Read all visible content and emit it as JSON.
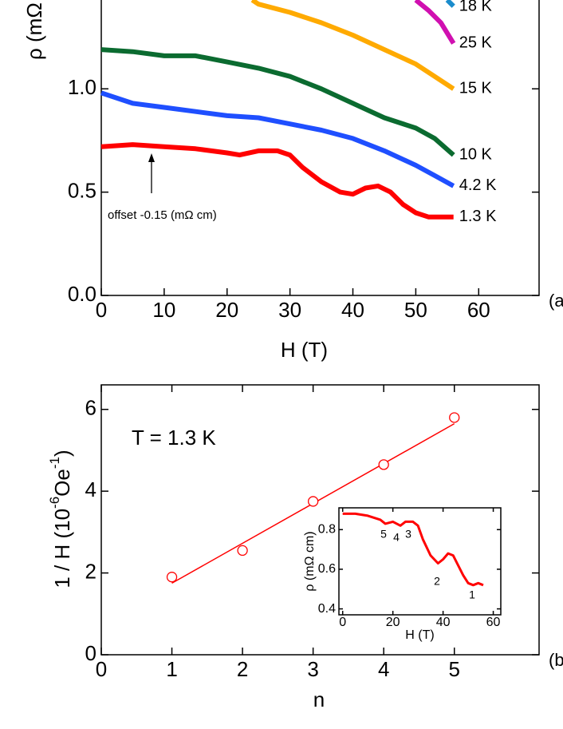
{
  "chart_data": [
    {
      "type": "line",
      "ylabel": "ρ (mΩ cm)",
      "xlabel": "H (T)",
      "panel_label": "(a)",
      "xlim": [
        0,
        69.6
      ],
      "ylim": [
        0,
        1.43
      ],
      "xticks": [
        0,
        10,
        20,
        30,
        40,
        50,
        60
      ],
      "yticks": [
        {
          "value": 0,
          "label": "0.0"
        },
        0.5,
        {
          "value": 1,
          "label": "1.0"
        }
      ],
      "series": [
        {
          "name": "1.3 K",
          "color": "#ff0000",
          "x": [
            0,
            5,
            10,
            15,
            20,
            22,
            25,
            28,
            30,
            32,
            35,
            38,
            40,
            42,
            44,
            46,
            48,
            50,
            52,
            54,
            56
          ],
          "values": [
            0.72,
            0.73,
            0.72,
            0.71,
            0.69,
            0.68,
            0.7,
            0.7,
            0.68,
            0.62,
            0.55,
            0.5,
            0.49,
            0.52,
            0.53,
            0.5,
            0.44,
            0.4,
            0.38,
            0.38,
            0.38
          ]
        },
        {
          "name": "4.2 K",
          "color": "#1f4fff",
          "x": [
            0,
            5,
            10,
            15,
            20,
            25,
            30,
            35,
            40,
            45,
            50,
            53,
            56
          ],
          "values": [
            0.98,
            0.93,
            0.91,
            0.89,
            0.87,
            0.86,
            0.83,
            0.8,
            0.76,
            0.7,
            0.63,
            0.58,
            0.53
          ]
        },
        {
          "name": "10 K",
          "color": "#0b6b30",
          "x": [
            0,
            5,
            10,
            15,
            20,
            25,
            30,
            35,
            40,
            45,
            50,
            53,
            56
          ],
          "values": [
            1.19,
            1.18,
            1.16,
            1.16,
            1.13,
            1.1,
            1.06,
            1.0,
            0.93,
            0.86,
            0.81,
            0.76,
            0.68
          ]
        },
        {
          "name": "15 K",
          "color": "#ffaa00",
          "x": [
            24,
            25,
            30,
            35,
            40,
            45,
            50,
            53,
            56
          ],
          "values": [
            1.43,
            1.41,
            1.37,
            1.32,
            1.26,
            1.19,
            1.12,
            1.06,
            1.0
          ]
        },
        {
          "name": "25 K",
          "color": "#d010b0",
          "x": [
            50,
            52,
            54,
            56
          ],
          "values": [
            1.43,
            1.38,
            1.32,
            1.22
          ]
        },
        {
          "name": "18 K",
          "color": "#1a8ccc",
          "x": [
            55,
            56
          ],
          "values": [
            1.43,
            1.4
          ]
        }
      ],
      "annotations": [
        "offset -0.15 (mΩ cm)"
      ]
    },
    {
      "type": "scatter",
      "ylabel": [
        "1 / H (10",
        "-6",
        "Oe",
        "-1",
        ")"
      ],
      "xlabel": "n",
      "panel_label": "(b)",
      "xlim": [
        0,
        6.2
      ],
      "ylim": [
        0,
        6.6
      ],
      "xticks": [
        0,
        1,
        2,
        3,
        4,
        5
      ],
      "yticks": [
        0,
        2,
        4,
        6
      ],
      "series": [
        {
          "color": "#ff0000",
          "x": [
            1,
            2,
            3,
            4,
            5
          ],
          "values": [
            1.9,
            2.55,
            3.75,
            4.65,
            5.8
          ]
        }
      ],
      "fit": {
        "color": "#ff0000",
        "x": [
          1,
          5
        ],
        "values": [
          1.75,
          5.65
        ]
      },
      "annotations": [
        "T = 1.3 K"
      ]
    },
    {
      "type": "line",
      "ylabel": "ρ (mΩ cm)",
      "xlabel": "H (T)",
      "xlim": [
        -1.5,
        63
      ],
      "ylim": [
        0.37,
        0.91
      ],
      "xticks": [
        0,
        20,
        40,
        60
      ],
      "yticks": [
        0.4,
        0.6,
        0.8
      ],
      "series": [
        {
          "color": "#ff0000",
          "x": [
            0,
            5,
            10,
            15,
            17,
            20,
            23,
            25,
            28,
            30,
            32,
            35,
            38,
            40,
            42,
            44,
            46,
            48,
            50,
            52,
            54,
            56
          ],
          "values": [
            0.88,
            0.88,
            0.87,
            0.85,
            0.83,
            0.84,
            0.82,
            0.84,
            0.84,
            0.82,
            0.75,
            0.67,
            0.63,
            0.65,
            0.68,
            0.67,
            0.62,
            0.57,
            0.53,
            0.52,
            0.53,
            0.52
          ]
        }
      ],
      "annotations": [
        "5",
        "4",
        "3",
        "2",
        "1"
      ]
    }
  ]
}
